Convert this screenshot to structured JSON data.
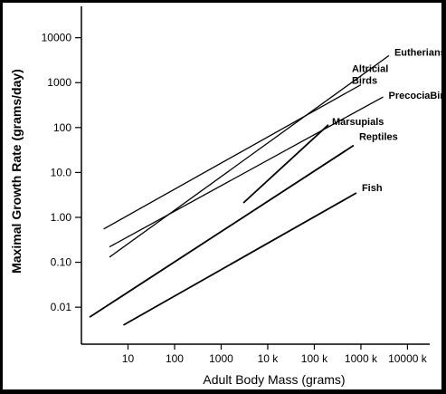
{
  "chart_data": {
    "type": "line",
    "title": "",
    "xlabel": "Adult Body Mass (grams)",
    "ylabel": "Maximal Growth Rate (grams/day)",
    "x_scale": "log",
    "y_scale": "log",
    "xlim": [
      1,
      30000000
    ],
    "ylim": [
      0.0015,
      50000
    ],
    "x_ticks": [
      {
        "value": 10,
        "label": "10"
      },
      {
        "value": 100,
        "label": "100"
      },
      {
        "value": 1000,
        "label": "1000"
      },
      {
        "value": 10000,
        "label": "10 k"
      },
      {
        "value": 100000,
        "label": "100 k"
      },
      {
        "value": 1000000,
        "label": "1000 k"
      },
      {
        "value": 10000000,
        "label": "10000 k"
      }
    ],
    "y_ticks": [
      {
        "value": 0.01,
        "label": "0.01"
      },
      {
        "value": 0.1,
        "label": "0.10"
      },
      {
        "value": 1,
        "label": "1.00"
      },
      {
        "value": 10,
        "label": "10.0"
      },
      {
        "value": 100,
        "label": "100"
      },
      {
        "value": 1000,
        "label": "1000"
      },
      {
        "value": 10000,
        "label": "10000"
      }
    ],
    "grid": false,
    "legend": "none",
    "series": [
      {
        "name": "Altricial Birds",
        "label_lines": [
          "Altricial",
          "Birds"
        ],
        "x": [
          3,
          1000000
        ],
        "y": [
          0.55,
          900
        ]
      },
      {
        "name": "Eutherians",
        "label_lines": [
          "Eutherians"
        ],
        "x": [
          4,
          4000000
        ],
        "y": [
          0.13,
          4000
        ]
      },
      {
        "name": "PrecociaBirds",
        "label_lines": [
          "PrecociaBirds"
        ],
        "x": [
          4,
          3000000
        ],
        "y": [
          0.22,
          480
        ]
      },
      {
        "name": "Marsupials",
        "label_lines": [
          "Marsupials"
        ],
        "x": [
          3000,
          200000
        ],
        "y": [
          2.1,
          115
        ]
      },
      {
        "name": "Reptiles",
        "label_lines": [
          "Reptiles"
        ],
        "x": [
          1.5,
          700000
        ],
        "y": [
          0.006,
          40
        ]
      },
      {
        "name": "Fish",
        "label_lines": [
          "Fish"
        ],
        "x": [
          8,
          800000
        ],
        "y": [
          0.004,
          3.5
        ]
      }
    ]
  }
}
